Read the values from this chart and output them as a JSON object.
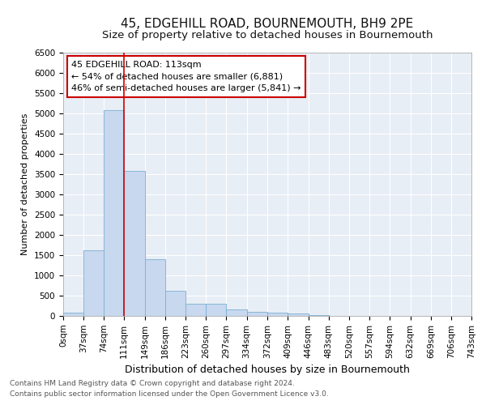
{
  "title_line1": "45, EDGEHILL ROAD, BOURNEMOUTH, BH9 2PE",
  "title_line2": "Size of property relative to detached houses in Bournemouth",
  "xlabel": "Distribution of detached houses by size in Bournemouth",
  "ylabel": "Number of detached properties",
  "footer_line1": "Contains HM Land Registry data © Crown copyright and database right 2024.",
  "footer_line2": "Contains public sector information licensed under the Open Government Licence v3.0.",
  "annotation_line1": "45 EDGEHILL ROAD: 113sqm",
  "annotation_line2": "← 54% of detached houses are smaller (6,881)",
  "annotation_line3": "46% of semi-detached houses are larger (5,841) →",
  "bin_edges": [
    0,
    37,
    74,
    111,
    149,
    186,
    223,
    260,
    297,
    334,
    372,
    409,
    446,
    483,
    520,
    557,
    594,
    632,
    669,
    706,
    743
  ],
  "bar_heights": [
    75,
    1625,
    5075,
    3575,
    1400,
    615,
    300,
    300,
    155,
    110,
    90,
    55,
    25,
    5,
    2,
    1,
    1,
    0,
    0,
    0
  ],
  "bar_color": "#c8d8ee",
  "bar_edge_color": "#7aafd4",
  "vline_color": "#cc0000",
  "vline_x": 111,
  "annotation_box_edge_color": "#cc0000",
  "ylim": [
    0,
    6500
  ],
  "yticks": [
    0,
    500,
    1000,
    1500,
    2000,
    2500,
    3000,
    3500,
    4000,
    4500,
    5000,
    5500,
    6000,
    6500
  ],
  "fig_bg_color": "#ffffff",
  "plot_bg_color": "#e8eef5",
  "grid_color": "#ffffff",
  "title_fontsize": 11,
  "subtitle_fontsize": 9.5,
  "xlabel_fontsize": 9,
  "ylabel_fontsize": 8,
  "tick_fontsize": 7.5,
  "annotation_fontsize": 8,
  "footer_fontsize": 6.5
}
